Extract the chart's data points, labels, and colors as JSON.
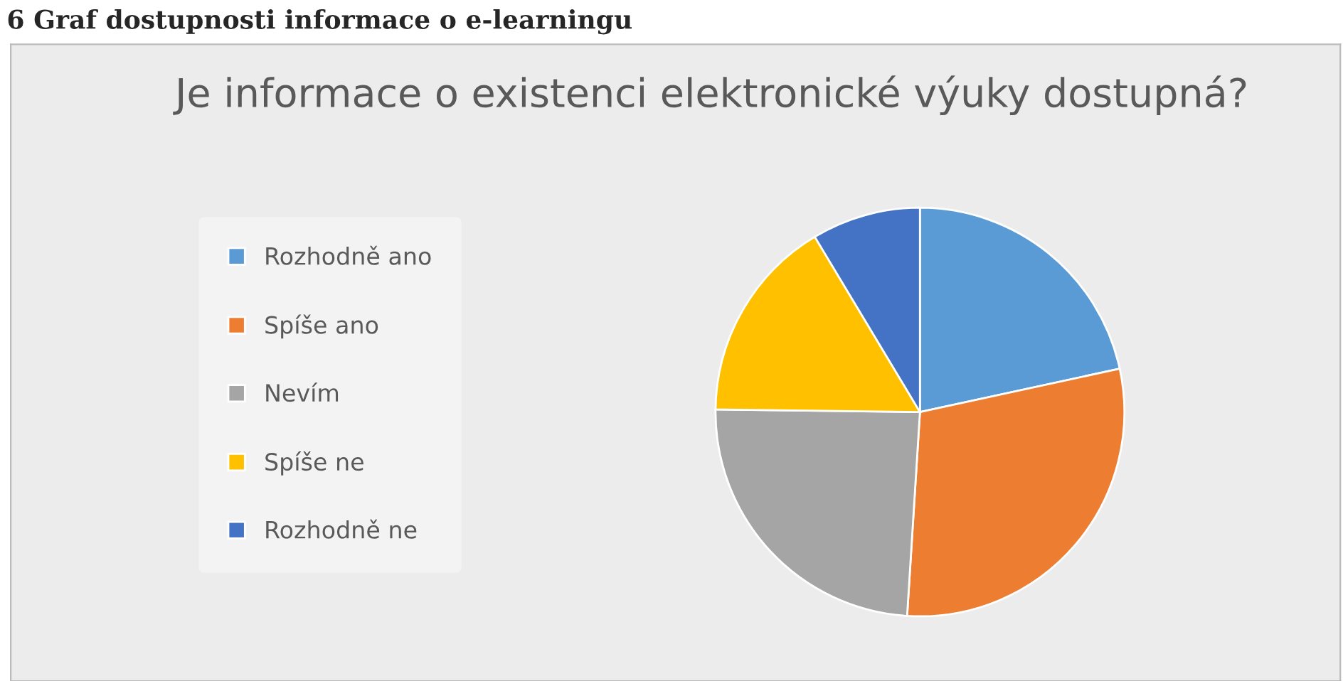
{
  "chart_data": {
    "type": "pie",
    "title": "Je informace o existenci elektronické výuky dostupná?",
    "annotations": [
      "6 Graf dostupnosti informace o e-learningu"
    ],
    "categories": [
      "Rozhodně ano",
      "Spíše ano",
      "Nevím",
      "Spíše ne",
      "Rozhodně ne"
    ],
    "values": [
      21.6,
      29.4,
      24.2,
      16.2,
      8.6
    ],
    "colors": [
      "#5b9bd5",
      "#ed7d31",
      "#a5a5a5",
      "#ffc000",
      "#4472c4"
    ],
    "legend": "left"
  }
}
